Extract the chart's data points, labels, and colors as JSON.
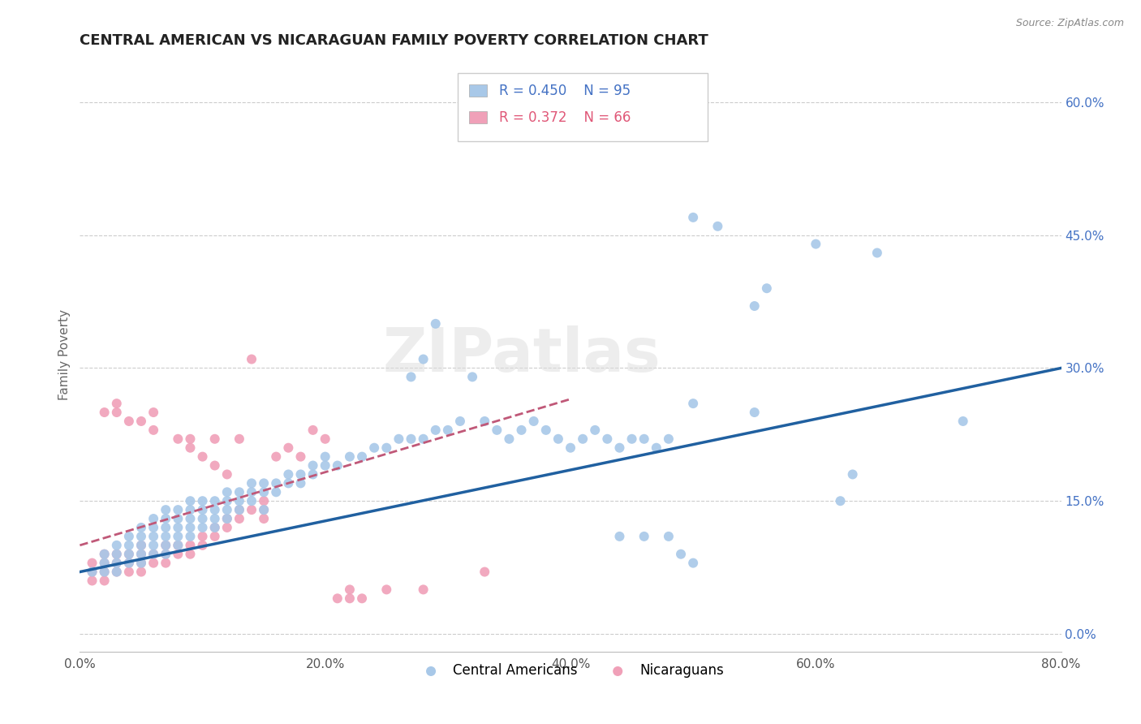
{
  "title": "CENTRAL AMERICAN VS NICARAGUAN FAMILY POVERTY CORRELATION CHART",
  "source": "Source: ZipAtlas.com",
  "xlabel_ticks": [
    "0.0%",
    "20.0%",
    "40.0%",
    "60.0%",
    "80.0%"
  ],
  "xlabel_tick_vals": [
    0.0,
    0.2,
    0.4,
    0.6,
    0.8
  ],
  "ylabel": "Family Poverty",
  "ylabel_ticks": [
    "0.0%",
    "15.0%",
    "30.0%",
    "45.0%",
    "60.0%"
  ],
  "ylabel_tick_vals": [
    0.0,
    0.15,
    0.3,
    0.45,
    0.6
  ],
  "xlim": [
    0.0,
    0.8
  ],
  "ylim": [
    -0.02,
    0.65
  ],
  "ca_line": [
    [
      0.0,
      0.07
    ],
    [
      0.8,
      0.3
    ]
  ],
  "nic_line": [
    [
      0.0,
      0.1
    ],
    [
      0.4,
      0.265
    ]
  ],
  "ca_color": "#a8c8e8",
  "nic_color": "#f0a0b8",
  "ca_line_color": "#2060a0",
  "nic_line_color": "#c05878",
  "watermark": "ZIPatlas",
  "background_color": "#ffffff",
  "grid_color": "#cccccc",
  "ca_scatter": [
    [
      0.01,
      0.07
    ],
    [
      0.02,
      0.08
    ],
    [
      0.02,
      0.07
    ],
    [
      0.02,
      0.09
    ],
    [
      0.03,
      0.08
    ],
    [
      0.03,
      0.07
    ],
    [
      0.03,
      0.09
    ],
    [
      0.03,
      0.1
    ],
    [
      0.04,
      0.08
    ],
    [
      0.04,
      0.09
    ],
    [
      0.04,
      0.1
    ],
    [
      0.04,
      0.11
    ],
    [
      0.05,
      0.08
    ],
    [
      0.05,
      0.09
    ],
    [
      0.05,
      0.1
    ],
    [
      0.05,
      0.11
    ],
    [
      0.05,
      0.12
    ],
    [
      0.06,
      0.09
    ],
    [
      0.06,
      0.1
    ],
    [
      0.06,
      0.11
    ],
    [
      0.06,
      0.12
    ],
    [
      0.06,
      0.13
    ],
    [
      0.07,
      0.09
    ],
    [
      0.07,
      0.1
    ],
    [
      0.07,
      0.11
    ],
    [
      0.07,
      0.12
    ],
    [
      0.07,
      0.13
    ],
    [
      0.07,
      0.14
    ],
    [
      0.08,
      0.1
    ],
    [
      0.08,
      0.11
    ],
    [
      0.08,
      0.12
    ],
    [
      0.08,
      0.13
    ],
    [
      0.08,
      0.14
    ],
    [
      0.09,
      0.11
    ],
    [
      0.09,
      0.12
    ],
    [
      0.09,
      0.13
    ],
    [
      0.09,
      0.14
    ],
    [
      0.09,
      0.15
    ],
    [
      0.1,
      0.12
    ],
    [
      0.1,
      0.13
    ],
    [
      0.1,
      0.14
    ],
    [
      0.1,
      0.15
    ],
    [
      0.11,
      0.12
    ],
    [
      0.11,
      0.13
    ],
    [
      0.11,
      0.14
    ],
    [
      0.11,
      0.15
    ],
    [
      0.12,
      0.13
    ],
    [
      0.12,
      0.14
    ],
    [
      0.12,
      0.15
    ],
    [
      0.12,
      0.16
    ],
    [
      0.13,
      0.14
    ],
    [
      0.13,
      0.15
    ],
    [
      0.13,
      0.16
    ],
    [
      0.14,
      0.15
    ],
    [
      0.14,
      0.16
    ],
    [
      0.14,
      0.17
    ],
    [
      0.15,
      0.14
    ],
    [
      0.15,
      0.16
    ],
    [
      0.15,
      0.17
    ],
    [
      0.16,
      0.16
    ],
    [
      0.16,
      0.17
    ],
    [
      0.17,
      0.17
    ],
    [
      0.17,
      0.18
    ],
    [
      0.18,
      0.17
    ],
    [
      0.18,
      0.18
    ],
    [
      0.19,
      0.18
    ],
    [
      0.19,
      0.19
    ],
    [
      0.2,
      0.19
    ],
    [
      0.2,
      0.2
    ],
    [
      0.21,
      0.19
    ],
    [
      0.22,
      0.2
    ],
    [
      0.23,
      0.2
    ],
    [
      0.24,
      0.21
    ],
    [
      0.25,
      0.21
    ],
    [
      0.26,
      0.22
    ],
    [
      0.27,
      0.22
    ],
    [
      0.28,
      0.22
    ],
    [
      0.29,
      0.23
    ],
    [
      0.3,
      0.23
    ],
    [
      0.31,
      0.24
    ],
    [
      0.27,
      0.29
    ],
    [
      0.28,
      0.31
    ],
    [
      0.29,
      0.35
    ],
    [
      0.32,
      0.29
    ],
    [
      0.33,
      0.24
    ],
    [
      0.34,
      0.23
    ],
    [
      0.35,
      0.22
    ],
    [
      0.36,
      0.23
    ],
    [
      0.37,
      0.24
    ],
    [
      0.38,
      0.23
    ],
    [
      0.39,
      0.22
    ],
    [
      0.4,
      0.21
    ],
    [
      0.41,
      0.22
    ],
    [
      0.42,
      0.23
    ],
    [
      0.43,
      0.22
    ],
    [
      0.44,
      0.21
    ],
    [
      0.45,
      0.22
    ],
    [
      0.46,
      0.22
    ],
    [
      0.47,
      0.21
    ],
    [
      0.48,
      0.22
    ],
    [
      0.49,
      0.09
    ],
    [
      0.5,
      0.08
    ],
    [
      0.5,
      0.47
    ],
    [
      0.52,
      0.46
    ],
    [
      0.55,
      0.37
    ],
    [
      0.56,
      0.39
    ],
    [
      0.44,
      0.11
    ],
    [
      0.46,
      0.11
    ],
    [
      0.48,
      0.11
    ],
    [
      0.5,
      0.26
    ],
    [
      0.55,
      0.25
    ],
    [
      0.6,
      0.44
    ],
    [
      0.62,
      0.15
    ],
    [
      0.63,
      0.18
    ],
    [
      0.65,
      0.43
    ],
    [
      0.72,
      0.24
    ]
  ],
  "nic_scatter": [
    [
      0.01,
      0.06
    ],
    [
      0.01,
      0.07
    ],
    [
      0.01,
      0.08
    ],
    [
      0.02,
      0.06
    ],
    [
      0.02,
      0.07
    ],
    [
      0.02,
      0.08
    ],
    [
      0.02,
      0.09
    ],
    [
      0.02,
      0.25
    ],
    [
      0.03,
      0.07
    ],
    [
      0.03,
      0.08
    ],
    [
      0.03,
      0.09
    ],
    [
      0.03,
      0.25
    ],
    [
      0.03,
      0.26
    ],
    [
      0.04,
      0.07
    ],
    [
      0.04,
      0.08
    ],
    [
      0.04,
      0.09
    ],
    [
      0.04,
      0.24
    ],
    [
      0.05,
      0.07
    ],
    [
      0.05,
      0.08
    ],
    [
      0.05,
      0.09
    ],
    [
      0.05,
      0.1
    ],
    [
      0.05,
      0.24
    ],
    [
      0.06,
      0.08
    ],
    [
      0.06,
      0.09
    ],
    [
      0.06,
      0.23
    ],
    [
      0.06,
      0.25
    ],
    [
      0.07,
      0.08
    ],
    [
      0.07,
      0.09
    ],
    [
      0.07,
      0.1
    ],
    [
      0.08,
      0.09
    ],
    [
      0.08,
      0.1
    ],
    [
      0.08,
      0.22
    ],
    [
      0.09,
      0.09
    ],
    [
      0.09,
      0.1
    ],
    [
      0.09,
      0.21
    ],
    [
      0.09,
      0.22
    ],
    [
      0.1,
      0.1
    ],
    [
      0.1,
      0.11
    ],
    [
      0.1,
      0.2
    ],
    [
      0.11,
      0.11
    ],
    [
      0.11,
      0.12
    ],
    [
      0.11,
      0.19
    ],
    [
      0.11,
      0.22
    ],
    [
      0.12,
      0.12
    ],
    [
      0.12,
      0.13
    ],
    [
      0.12,
      0.18
    ],
    [
      0.13,
      0.13
    ],
    [
      0.13,
      0.14
    ],
    [
      0.13,
      0.22
    ],
    [
      0.14,
      0.14
    ],
    [
      0.14,
      0.31
    ],
    [
      0.15,
      0.13
    ],
    [
      0.15,
      0.14
    ],
    [
      0.15,
      0.15
    ],
    [
      0.16,
      0.2
    ],
    [
      0.17,
      0.21
    ],
    [
      0.18,
      0.2
    ],
    [
      0.19,
      0.23
    ],
    [
      0.2,
      0.22
    ],
    [
      0.21,
      0.04
    ],
    [
      0.22,
      0.04
    ],
    [
      0.22,
      0.05
    ],
    [
      0.23,
      0.04
    ],
    [
      0.25,
      0.05
    ],
    [
      0.28,
      0.05
    ],
    [
      0.33,
      0.07
    ]
  ]
}
